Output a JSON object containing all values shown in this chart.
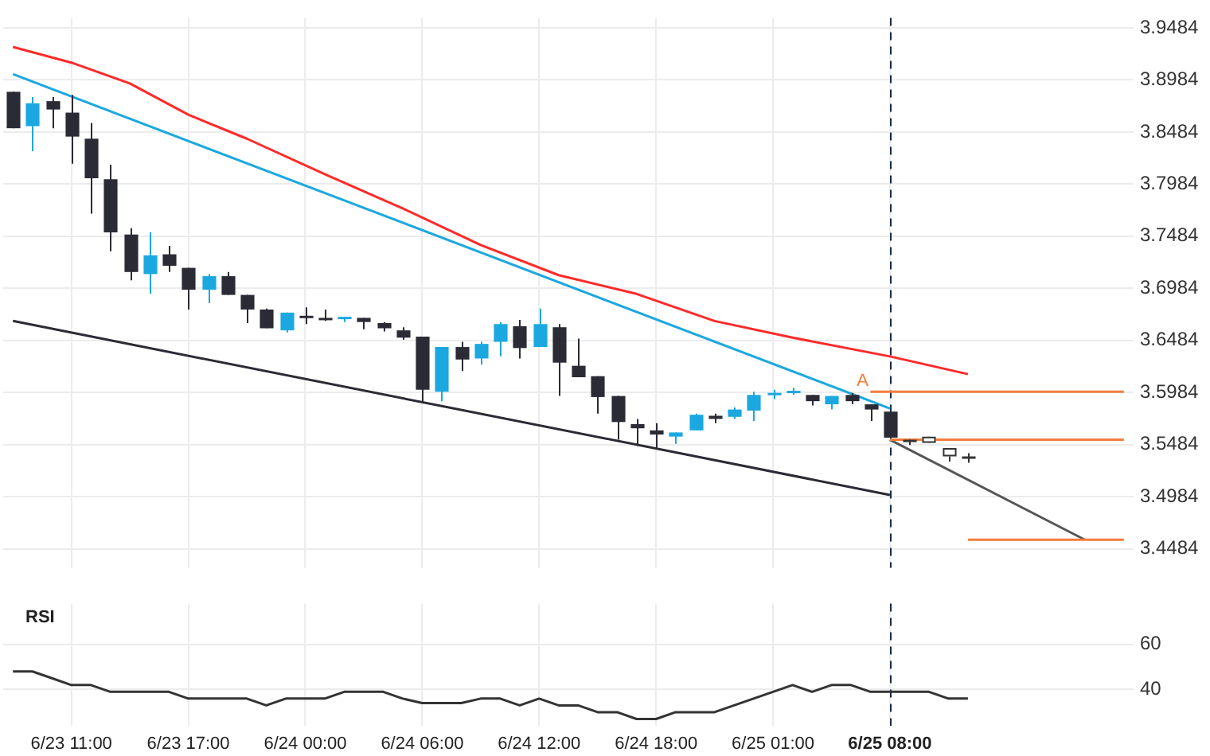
{
  "chart_data": [
    {
      "type": "candlestick",
      "categories": [
        null,
        null,
        null,
        "6/23 11:00",
        null,
        null,
        null,
        null,
        null,
        "6/23 17:00",
        null,
        null,
        null,
        null,
        null,
        "6/24 00:00",
        null,
        null,
        null,
        null,
        null,
        "6/24 06:00",
        null,
        null,
        null,
        null,
        null,
        "6/24 12:00",
        null,
        null,
        null,
        null,
        null,
        "6/24 18:00",
        null,
        null,
        null,
        null,
        null,
        "6/25 01:00",
        null,
        null,
        null,
        null,
        null,
        "6/25 08:00",
        null,
        null,
        null,
        null,
        null,
        null,
        null,
        null,
        null,
        null,
        null,
        null
      ],
      "ohlc": [
        [
          3.887,
          3.887,
          3.852,
          3.852
        ],
        [
          3.854,
          3.882,
          3.83,
          3.876
        ],
        [
          3.878,
          3.882,
          3.852,
          3.87
        ],
        [
          3.867,
          3.884,
          3.818,
          3.844
        ],
        [
          3.842,
          3.857,
          3.77,
          3.804
        ],
        [
          3.803,
          3.817,
          3.734,
          3.752
        ],
        [
          3.75,
          3.756,
          3.706,
          3.714
        ],
        [
          3.712,
          3.752,
          3.693,
          3.73
        ],
        [
          3.731,
          3.739,
          3.714,
          3.72
        ],
        [
          3.718,
          3.718,
          3.678,
          3.697
        ],
        [
          3.697,
          3.712,
          3.684,
          3.71
        ],
        [
          3.71,
          3.714,
          3.692,
          3.692
        ],
        [
          3.692,
          3.692,
          3.665,
          3.678
        ],
        [
          3.678,
          3.679,
          3.66,
          3.66
        ],
        [
          3.658,
          3.675,
          3.656,
          3.675
        ],
        [
          3.672,
          3.68,
          3.664,
          3.672
        ],
        [
          3.67,
          3.678,
          3.667,
          3.67
        ],
        [
          3.67,
          3.671,
          3.666,
          3.671
        ],
        [
          3.67,
          3.67,
          3.659,
          3.666
        ],
        [
          3.665,
          3.666,
          3.657,
          3.66
        ],
        [
          3.658,
          3.661,
          3.649,
          3.651
        ],
        [
          3.652,
          3.652,
          3.588,
          3.601
        ],
        [
          3.599,
          3.642,
          3.59,
          3.642
        ],
        [
          3.642,
          3.647,
          3.619,
          3.63
        ],
        [
          3.631,
          3.647,
          3.625,
          3.645
        ],
        [
          3.647,
          3.666,
          3.633,
          3.664
        ],
        [
          3.662,
          3.668,
          3.631,
          3.641
        ],
        [
          3.642,
          3.679,
          3.642,
          3.664
        ],
        [
          3.661,
          3.664,
          3.595,
          3.627
        ],
        [
          3.624,
          3.65,
          3.613,
          3.613
        ],
        [
          3.614,
          3.614,
          3.578,
          3.594
        ],
        [
          3.595,
          3.595,
          3.553,
          3.57
        ],
        [
          3.568,
          3.573,
          3.547,
          3.564
        ],
        [
          3.562,
          3.569,
          3.544,
          3.558
        ],
        [
          3.556,
          3.56,
          3.549,
          3.56
        ],
        [
          3.562,
          3.578,
          3.562,
          3.577
        ],
        [
          3.576,
          3.578,
          3.569,
          3.573
        ],
        [
          3.575,
          3.584,
          3.573,
          3.582
        ],
        [
          3.581,
          3.599,
          3.571,
          3.596
        ],
        [
          3.597,
          3.601,
          3.592,
          3.598
        ],
        [
          3.599,
          3.603,
          3.596,
          3.6
        ],
        [
          3.596,
          3.596,
          3.586,
          3.59
        ],
        [
          3.587,
          3.595,
          3.582,
          3.595
        ],
        [
          3.596,
          3.598,
          3.587,
          3.59
        ],
        [
          3.587,
          3.587,
          3.571,
          3.582
        ],
        [
          3.58,
          3.58,
          3.555,
          3.555
        ],
        [
          3.553,
          3.553,
          3.548,
          3.552
        ],
        [
          3.55,
          3.556,
          3.55,
          3.556
        ],
        [
          3.537,
          3.545,
          3.532,
          3.545
        ],
        [
          3.537,
          3.54,
          3.531,
          3.537
        ],
        null,
        null,
        null,
        null,
        null,
        null,
        null,
        null
      ],
      "colors": [
        "#2b2b35",
        "#1ba8e0",
        "#2b2b35",
        "#2b2b35",
        "#2b2b35",
        "#2b2b35",
        "#2b2b35",
        "#1ba8e0",
        "#2b2b35",
        "#2b2b35",
        "#1ba8e0",
        "#2b2b35",
        "#2b2b35",
        "#2b2b35",
        "#1ba8e0",
        "#2b2b35",
        "#2b2b35",
        "#1ba8e0",
        "#2b2b35",
        "#2b2b35",
        "#2b2b35",
        "#2b2b35",
        "#1ba8e0",
        "#2b2b35",
        "#1ba8e0",
        "#1ba8e0",
        "#2b2b35",
        "#1ba8e0",
        "#2b2b35",
        "#2b2b35",
        "#2b2b35",
        "#2b2b35",
        "#2b2b35",
        "#2b2b35",
        "#1ba8e0",
        "#1ba8e0",
        "#2b2b35",
        "#1ba8e0",
        "#1ba8e0",
        "#1ba8e0",
        "#1ba8e0",
        "#2b2b35",
        "#1ba8e0",
        "#2b2b35",
        "#2b2b35",
        "#2b2b35",
        "#333333",
        "#ffffff",
        "#ffffff",
        "#333333",
        null,
        null,
        null,
        null,
        null,
        null,
        null,
        null
      ],
      "series": [
        {
          "type": "line",
          "color": "#ff2a2a",
          "values": [
            3.93,
            null,
            null,
            3.915,
            null,
            null,
            3.895,
            null,
            null,
            3.865,
            null,
            null,
            3.842,
            null,
            null,
            null,
            3.808,
            null,
            null,
            null,
            3.775,
            null,
            null,
            null,
            3.74,
            null,
            null,
            null,
            3.711,
            null,
            null,
            null,
            3.693,
            null,
            null,
            null,
            3.667,
            null,
            null,
            null,
            3.651,
            null,
            null,
            null,
            null,
            3.633,
            null,
            null,
            null,
            3.616,
            null,
            null,
            null,
            null,
            null,
            null,
            null,
            null
          ]
        },
        {
          "type": "line",
          "color": "#1ba8e0",
          "values": [
            3.904,
            null,
            null,
            null,
            null,
            null,
            null,
            null,
            null,
            null,
            null,
            null,
            null,
            null,
            null,
            null,
            null,
            null,
            null,
            null,
            null,
            null,
            null,
            null,
            null,
            null,
            null,
            null,
            null,
            null,
            null,
            null,
            null,
            null,
            null,
            null,
            null,
            null,
            null,
            null,
            null,
            null,
            null,
            null,
            null,
            3.583,
            null,
            null,
            null,
            null,
            null,
            null,
            null,
            null,
            null,
            null,
            null,
            null
          ]
        },
        {
          "type": "line",
          "color": "#2b2b35",
          "values": [
            3.667,
            null,
            null,
            null,
            null,
            null,
            null,
            null,
            null,
            null,
            null,
            null,
            null,
            null,
            null,
            null,
            null,
            null,
            null,
            null,
            null,
            null,
            null,
            null,
            null,
            null,
            null,
            null,
            null,
            null,
            null,
            null,
            null,
            null,
            null,
            null,
            null,
            null,
            null,
            null,
            null,
            null,
            null,
            null,
            null,
            3.5,
            null,
            null,
            null,
            null,
            null,
            null,
            null,
            null,
            null,
            null,
            null,
            null
          ]
        },
        {
          "type": "line",
          "name": "A",
          "color": "#f47c3c",
          "values": [
            null,
            null,
            null,
            null,
            null,
            null,
            null,
            null,
            null,
            null,
            null,
            null,
            null,
            null,
            null,
            null,
            null,
            null,
            null,
            null,
            null,
            null,
            null,
            null,
            null,
            null,
            null,
            null,
            null,
            null,
            null,
            null,
            null,
            null,
            null,
            null,
            null,
            null,
            null,
            null,
            null,
            null,
            null,
            null,
            3.599,
            3.599,
            3.599,
            3.599,
            3.599,
            3.599,
            3.599,
            3.599,
            3.599,
            3.599,
            3.599,
            3.599,
            3.599,
            3.599
          ]
        },
        {
          "type": "line",
          "color": "#f47c3c",
          "values": [
            null,
            null,
            null,
            null,
            null,
            null,
            null,
            null,
            null,
            null,
            null,
            null,
            null,
            null,
            null,
            null,
            null,
            null,
            null,
            null,
            null,
            null,
            null,
            null,
            null,
            null,
            null,
            null,
            null,
            null,
            null,
            null,
            null,
            null,
            null,
            null,
            null,
            null,
            null,
            null,
            null,
            null,
            null,
            null,
            null,
            3.553,
            3.553,
            3.553,
            3.553,
            3.553,
            3.553,
            3.553,
            3.553,
            3.553,
            3.553,
            3.553,
            3.553,
            3.553
          ]
        },
        {
          "type": "line",
          "color": "#f47c3c",
          "values": [
            null,
            null,
            null,
            null,
            null,
            null,
            null,
            null,
            null,
            null,
            null,
            null,
            null,
            null,
            null,
            null,
            null,
            null,
            null,
            null,
            null,
            null,
            null,
            null,
            null,
            null,
            null,
            null,
            null,
            null,
            null,
            null,
            null,
            null,
            null,
            null,
            null,
            null,
            null,
            null,
            null,
            null,
            null,
            null,
            null,
            null,
            null,
            null,
            null,
            3.457,
            3.457,
            3.457,
            3.457,
            3.457,
            3.457,
            3.457,
            3.457,
            3.457
          ]
        },
        {
          "type": "line",
          "color": "#555555",
          "values": [
            null,
            null,
            null,
            null,
            null,
            null,
            null,
            null,
            null,
            null,
            null,
            null,
            null,
            null,
            null,
            null,
            null,
            null,
            null,
            null,
            null,
            null,
            null,
            null,
            null,
            null,
            null,
            null,
            null,
            null,
            null,
            null,
            null,
            null,
            null,
            null,
            null,
            null,
            null,
            null,
            null,
            null,
            null,
            null,
            null,
            3.553,
            null,
            null,
            null,
            null,
            null,
            null,
            null,
            null,
            null,
            3.457,
            null,
            null
          ]
        }
      ],
      "ylim": [
        3.43,
        3.958
      ],
      "yticks": [
        3.4484,
        3.4984,
        3.5484,
        3.5984,
        3.6484,
        3.6984,
        3.7484,
        3.7984,
        3.8484,
        3.8984,
        3.9484
      ],
      "ref_lines": [
        {
          "axis": "x",
          "value": "6/25 08:00",
          "color": "#1a2b44",
          "line_style": "dashed"
        }
      ],
      "grid": true,
      "legend": false,
      "marker": "none",
      "tick_labels": "y"
    },
    {
      "type": "line",
      "title": "RSI",
      "categories": [
        null,
        null,
        null,
        "6/23 11:00",
        null,
        null,
        null,
        null,
        null,
        "6/23 17:00",
        null,
        null,
        null,
        null,
        null,
        "6/24 00:00",
        null,
        null,
        null,
        null,
        null,
        "6/24 06:00",
        null,
        null,
        null,
        null,
        null,
        "6/24 12:00",
        null,
        null,
        null,
        null,
        null,
        "6/24 18:00",
        null,
        null,
        null,
        null,
        null,
        "6/25 01:00",
        null,
        null,
        null,
        null,
        null,
        "6/25 08:00",
        null,
        null,
        null,
        null,
        null,
        null,
        null,
        null,
        null,
        null,
        null,
        null
      ],
      "color": "#333333",
      "values": [
        48,
        48,
        45,
        42,
        42,
        39,
        39,
        39,
        39,
        36,
        36,
        36,
        36,
        33,
        36,
        36,
        36,
        39,
        39,
        39,
        36,
        34,
        34,
        34,
        36,
        36,
        33,
        36,
        33,
        33,
        30,
        30,
        27,
        27,
        30,
        30,
        30,
        33,
        36,
        39,
        42,
        39,
        42,
        42,
        39,
        39,
        39,
        39,
        36,
        36,
        null,
        null,
        null,
        null,
        null,
        null,
        null,
        null
      ],
      "ylim": [
        24,
        78
      ],
      "yticks": [
        40,
        60
      ],
      "ref_lines": [
        {
          "axis": "x",
          "value": "6/25 08:00",
          "color": "#1a2b44",
          "line_style": "dashed"
        }
      ],
      "grid": true,
      "legend": false,
      "marker": "none"
    }
  ]
}
